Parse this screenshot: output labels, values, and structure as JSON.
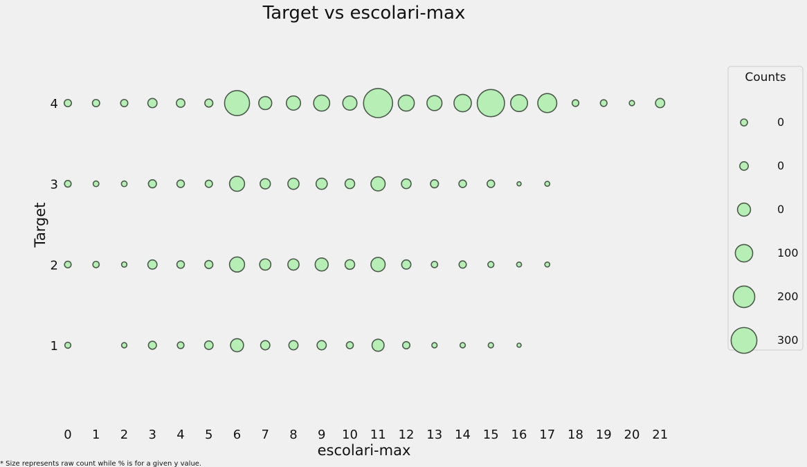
{
  "chart_data": {
    "type": "scatter",
    "title": "Target vs escolari-max",
    "xlabel": "escolari-max",
    "ylabel": "Target",
    "x_ticks": [
      "0",
      "1",
      "2",
      "3",
      "4",
      "5",
      "6",
      "7",
      "8",
      "9",
      "10",
      "11",
      "12",
      "13",
      "14",
      "15",
      "16",
      "17",
      "18",
      "19",
      "20",
      "21"
    ],
    "y_ticks": [
      "1",
      "2",
      "3",
      "4"
    ],
    "xlim": [
      -0.5,
      21.5
    ],
    "ylim": [
      0.4,
      4.7
    ],
    "grid": false,
    "marker_color": "#b7eeb6",
    "edge_color": "#4a5a4a",
    "size_note": "bubble size encodes raw count",
    "points": [
      {
        "x": 0,
        "y": 1,
        "count": 9
      },
      {
        "x": 2,
        "y": 1,
        "count": 7
      },
      {
        "x": 3,
        "y": 1,
        "count": 16
      },
      {
        "x": 4,
        "y": 1,
        "count": 11
      },
      {
        "x": 5,
        "y": 1,
        "count": 18
      },
      {
        "x": 6,
        "y": 1,
        "count": 42
      },
      {
        "x": 7,
        "y": 1,
        "count": 21
      },
      {
        "x": 8,
        "y": 1,
        "count": 21
      },
      {
        "x": 9,
        "y": 1,
        "count": 21
      },
      {
        "x": 10,
        "y": 1,
        "count": 12
      },
      {
        "x": 11,
        "y": 1,
        "count": 36
      },
      {
        "x": 12,
        "y": 1,
        "count": 13
      },
      {
        "x": 13,
        "y": 1,
        "count": 7
      },
      {
        "x": 14,
        "y": 1,
        "count": 7
      },
      {
        "x": 15,
        "y": 1,
        "count": 7
      },
      {
        "x": 16,
        "y": 1,
        "count": 2
      },
      {
        "x": 0,
        "y": 2,
        "count": 11
      },
      {
        "x": 1,
        "y": 2,
        "count": 10
      },
      {
        "x": 2,
        "y": 2,
        "count": 7
      },
      {
        "x": 3,
        "y": 2,
        "count": 21
      },
      {
        "x": 4,
        "y": 2,
        "count": 14
      },
      {
        "x": 5,
        "y": 2,
        "count": 16
      },
      {
        "x": 6,
        "y": 2,
        "count": 56
      },
      {
        "x": 7,
        "y": 2,
        "count": 31
      },
      {
        "x": 8,
        "y": 2,
        "count": 31
      },
      {
        "x": 9,
        "y": 2,
        "count": 42
      },
      {
        "x": 10,
        "y": 2,
        "count": 23
      },
      {
        "x": 11,
        "y": 2,
        "count": 50
      },
      {
        "x": 12,
        "y": 2,
        "count": 21
      },
      {
        "x": 13,
        "y": 2,
        "count": 10
      },
      {
        "x": 14,
        "y": 2,
        "count": 13
      },
      {
        "x": 15,
        "y": 2,
        "count": 9
      },
      {
        "x": 16,
        "y": 2,
        "count": 6
      },
      {
        "x": 17,
        "y": 2,
        "count": 6
      },
      {
        "x": 0,
        "y": 3,
        "count": 11
      },
      {
        "x": 1,
        "y": 3,
        "count": 8
      },
      {
        "x": 2,
        "y": 3,
        "count": 8
      },
      {
        "x": 3,
        "y": 3,
        "count": 16
      },
      {
        "x": 4,
        "y": 3,
        "count": 14
      },
      {
        "x": 5,
        "y": 3,
        "count": 13
      },
      {
        "x": 6,
        "y": 3,
        "count": 56
      },
      {
        "x": 7,
        "y": 3,
        "count": 26
      },
      {
        "x": 8,
        "y": 3,
        "count": 31
      },
      {
        "x": 9,
        "y": 3,
        "count": 31
      },
      {
        "x": 10,
        "y": 3,
        "count": 23
      },
      {
        "x": 11,
        "y": 3,
        "count": 50
      },
      {
        "x": 12,
        "y": 3,
        "count": 23
      },
      {
        "x": 13,
        "y": 3,
        "count": 16
      },
      {
        "x": 14,
        "y": 3,
        "count": 14
      },
      {
        "x": 15,
        "y": 3,
        "count": 14
      },
      {
        "x": 16,
        "y": 3,
        "count": 2
      },
      {
        "x": 17,
        "y": 3,
        "count": 6
      },
      {
        "x": 0,
        "y": 4,
        "count": 13
      },
      {
        "x": 1,
        "y": 4,
        "count": 13
      },
      {
        "x": 2,
        "y": 4,
        "count": 13
      },
      {
        "x": 3,
        "y": 4,
        "count": 21
      },
      {
        "x": 4,
        "y": 4,
        "count": 18
      },
      {
        "x": 5,
        "y": 4,
        "count": 16
      },
      {
        "x": 6,
        "y": 4,
        "count": 155
      },
      {
        "x": 7,
        "y": 4,
        "count": 42
      },
      {
        "x": 8,
        "y": 4,
        "count": 50
      },
      {
        "x": 9,
        "y": 4,
        "count": 64
      },
      {
        "x": 10,
        "y": 4,
        "count": 50
      },
      {
        "x": 11,
        "y": 4,
        "count": 210
      },
      {
        "x": 12,
        "y": 4,
        "count": 64
      },
      {
        "x": 13,
        "y": 4,
        "count": 56
      },
      {
        "x": 14,
        "y": 4,
        "count": 75
      },
      {
        "x": 15,
        "y": 4,
        "count": 185
      },
      {
        "x": 16,
        "y": 4,
        "count": 71
      },
      {
        "x": 17,
        "y": 4,
        "count": 90
      },
      {
        "x": 18,
        "y": 4,
        "count": 11
      },
      {
        "x": 19,
        "y": 4,
        "count": 11
      },
      {
        "x": 20,
        "y": 4,
        "count": 7
      },
      {
        "x": 21,
        "y": 4,
        "count": 21
      }
    ],
    "legend": {
      "title": "Counts",
      "placement": "right",
      "entries": [
        {
          "label": "0",
          "count": 2
        },
        {
          "label": "0",
          "count": 18
        },
        {
          "label": "0",
          "count": 42
        },
        {
          "label": "100",
          "count": 75
        },
        {
          "label": "200",
          "count": 115
        },
        {
          "label": "300",
          "count": 165
        }
      ]
    },
    "footnote": "* Size represents raw count while % is for a given y value."
  }
}
